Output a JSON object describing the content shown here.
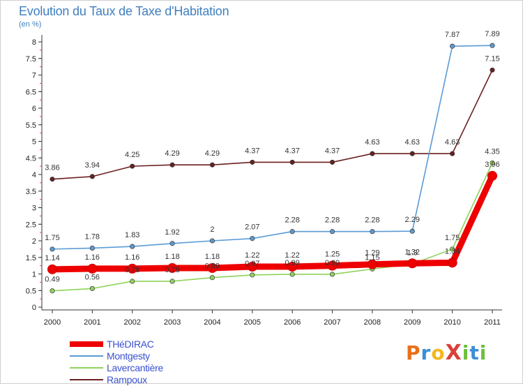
{
  "title": "Evolution du Taux de Taxe d'Habitation",
  "unit": "(en %)",
  "brand": {
    "text": "ProXiti",
    "letter_colors": [
      "#e8701a",
      "#3a8fd8",
      "#f2b81f",
      "#d9413a",
      "#6cbf3f",
      "#3a8fd8",
      "#6cbf3f"
    ]
  },
  "chart_data": {
    "type": "line",
    "title": "Evolution du Taux de Taxe d'Habitation",
    "ylabel": "(en %)",
    "x": [
      "2000",
      "2001",
      "2002",
      "2003",
      "2004",
      "2005",
      "2006",
      "2007",
      "2008",
      "2009",
      "2010",
      "2011"
    ],
    "yticks": [
      "0",
      "0.5",
      "1",
      "1.5",
      "2",
      "2.5",
      "3",
      "3.5",
      "4",
      "4.5",
      "5",
      "5.5",
      "6",
      "6.5",
      "7",
      "7.5",
      "8"
    ],
    "ylim": [
      0,
      8
    ],
    "grid": false,
    "legend_position": "bottom-left",
    "series": [
      {
        "name": "Rampoux",
        "color": "#6b1f1f",
        "values": [
          3.86,
          3.94,
          4.25,
          4.29,
          4.29,
          4.37,
          4.37,
          4.37,
          4.63,
          4.63,
          4.63,
          7.15
        ],
        "labels": [
          "3.86",
          "3.94",
          "4.25",
          "4.29",
          "4.29",
          "4.37",
          "4.37",
          "4.37",
          "4.63",
          "4.63",
          "4.63",
          "7.15"
        ]
      },
      {
        "name": "Montgesty",
        "color": "#5a9bd5",
        "values": [
          1.75,
          1.78,
          1.83,
          1.92,
          2.0,
          2.07,
          2.28,
          2.28,
          2.28,
          2.29,
          7.87,
          7.89
        ],
        "labels": [
          "1.75",
          "1.78",
          "1.83",
          "1.92",
          "2",
          "2.07",
          "2.28",
          "2.28",
          "2.28",
          "2.29",
          "7.87",
          "7.89"
        ]
      },
      {
        "name": "Lavercantière",
        "color": "#8fd35a",
        "values": [
          0.49,
          0.56,
          0.78,
          0.78,
          0.89,
          0.97,
          0.99,
          0.99,
          1.15,
          1.3,
          1.75,
          4.35
        ],
        "labels": [
          "0.49",
          "0.56",
          "0.78",
          "0.78",
          "0.89",
          "0.97",
          "0.99",
          "0.99",
          "1.15",
          "1.3",
          "1.75",
          "4.35"
        ]
      },
      {
        "name": "THéDIRAC",
        "color": "#ee0000",
        "values": [
          1.14,
          1.16,
          1.16,
          1.18,
          1.18,
          1.22,
          1.22,
          1.25,
          1.29,
          1.32,
          1.34,
          3.96
        ],
        "labels": [
          "1.14",
          "1.16",
          "1.16",
          "1.18",
          "1.18",
          "1.22",
          "1.22",
          "1.25",
          "1.29",
          "1.32",
          "1.34",
          "3.96"
        ]
      }
    ],
    "legend_order": [
      "THéDIRAC",
      "Montgesty",
      "Lavercantière",
      "Rampoux"
    ]
  }
}
